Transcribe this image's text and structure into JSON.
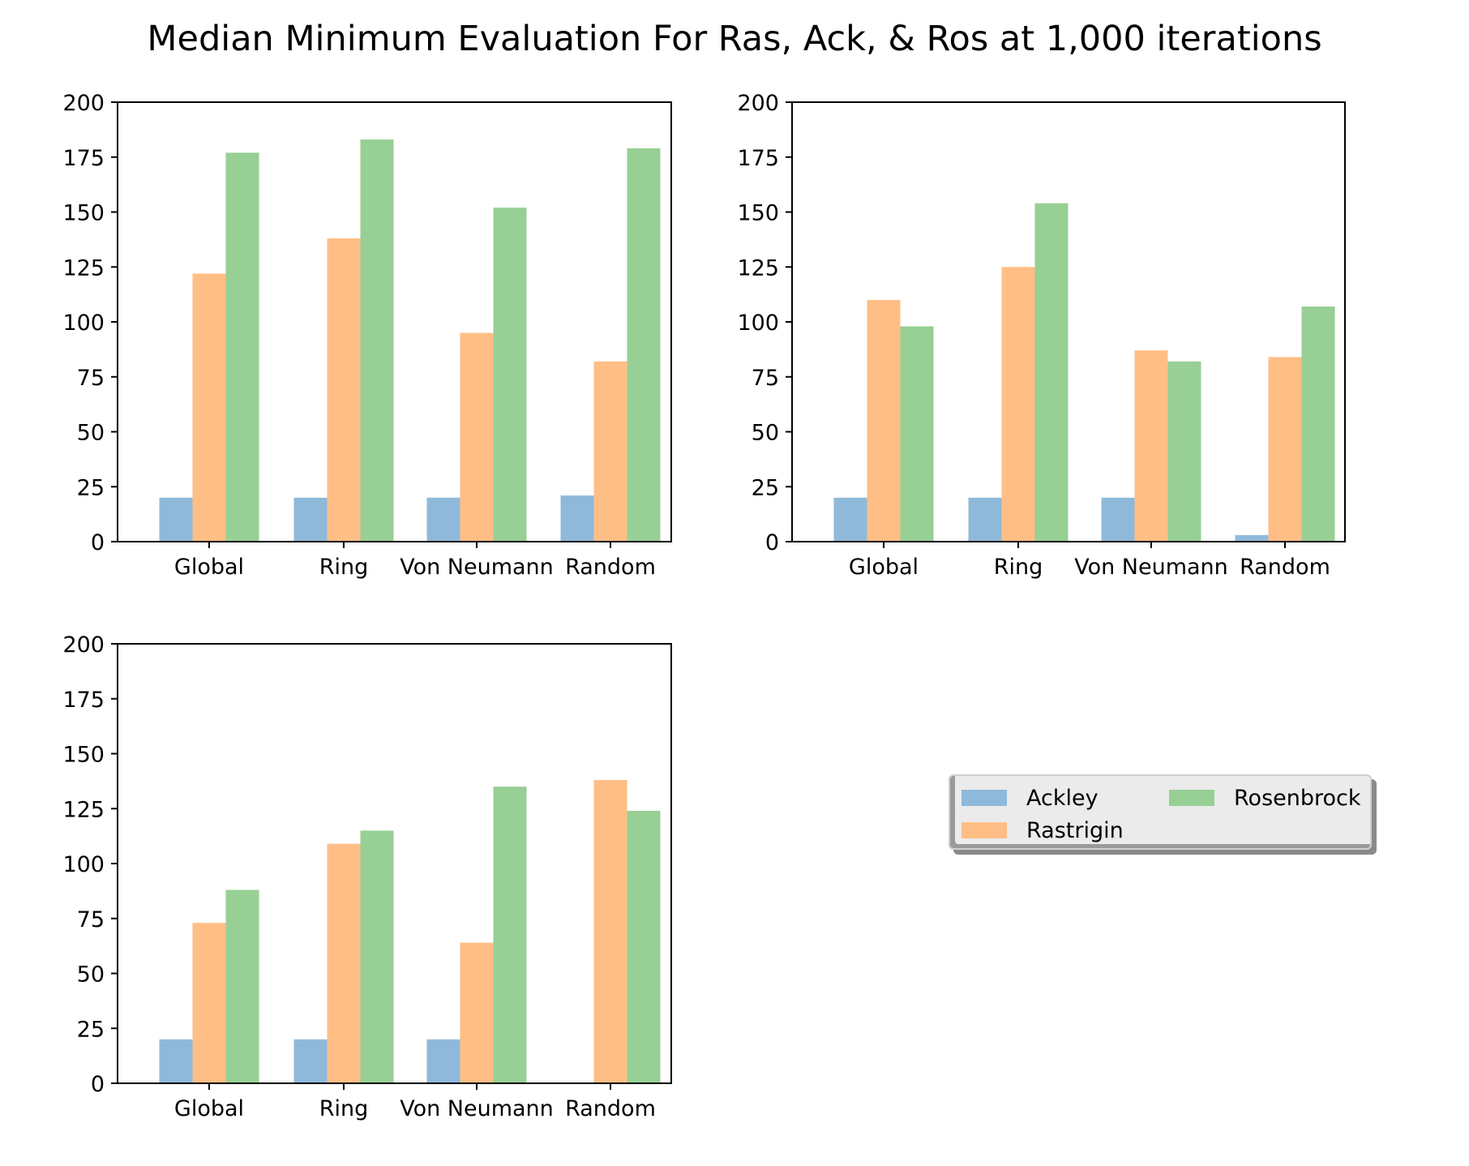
{
  "title": "Median Minimum Evaluation For Ras, Ack, & Ros at 1,000 iterations",
  "colors": {
    "Ackley": "#8fb9da",
    "Rastrigin": "#ffbe85",
    "Rosenbrock": "#97cf94"
  },
  "legend": {
    "placement": "right, lower-middle of figure",
    "columns": 2,
    "entries": [
      "Ackley",
      "Rastrigin",
      "Rosenbrock"
    ]
  },
  "chart_data": [
    {
      "type": "bar",
      "title": "",
      "xlabel": "",
      "ylabel": "",
      "categories": [
        "Global",
        "Ring",
        "Von Neumann",
        "Random"
      ],
      "ylim": [
        0,
        200
      ],
      "yticks": [
        "0",
        "25",
        "50",
        "75",
        "100",
        "125",
        "150",
        "175",
        "200"
      ],
      "grid": false,
      "series": [
        {
          "name": "Ackley",
          "values": [
            20,
            20,
            20,
            21
          ]
        },
        {
          "name": "Rastrigin",
          "values": [
            122,
            138,
            95,
            82
          ]
        },
        {
          "name": "Rosenbrock",
          "values": [
            177,
            183,
            152,
            179
          ]
        }
      ]
    },
    {
      "type": "bar",
      "title": "",
      "xlabel": "",
      "ylabel": "",
      "categories": [
        "Global",
        "Ring",
        "Von Neumann",
        "Random"
      ],
      "ylim": [
        0,
        200
      ],
      "yticks": [
        "0",
        "25",
        "50",
        "75",
        "100",
        "125",
        "150",
        "175",
        "200"
      ],
      "grid": false,
      "series": [
        {
          "name": "Ackley",
          "values": [
            20,
            20,
            20,
            3
          ]
        },
        {
          "name": "Rastrigin",
          "values": [
            110,
            125,
            87,
            84
          ]
        },
        {
          "name": "Rosenbrock",
          "values": [
            98,
            154,
            82,
            107
          ]
        }
      ]
    },
    {
      "type": "bar",
      "title": "",
      "xlabel": "",
      "ylabel": "",
      "categories": [
        "Global",
        "Ring",
        "Von Neumann",
        "Random"
      ],
      "ylim": [
        0,
        200
      ],
      "yticks": [
        "0",
        "25",
        "50",
        "75",
        "100",
        "125",
        "150",
        "175",
        "200"
      ],
      "grid": false,
      "series": [
        {
          "name": "Ackley",
          "values": [
            20,
            20,
            20,
            0
          ]
        },
        {
          "name": "Rastrigin",
          "values": [
            73,
            109,
            64,
            138
          ]
        },
        {
          "name": "Rosenbrock",
          "values": [
            88,
            115,
            135,
            124
          ]
        }
      ]
    }
  ]
}
